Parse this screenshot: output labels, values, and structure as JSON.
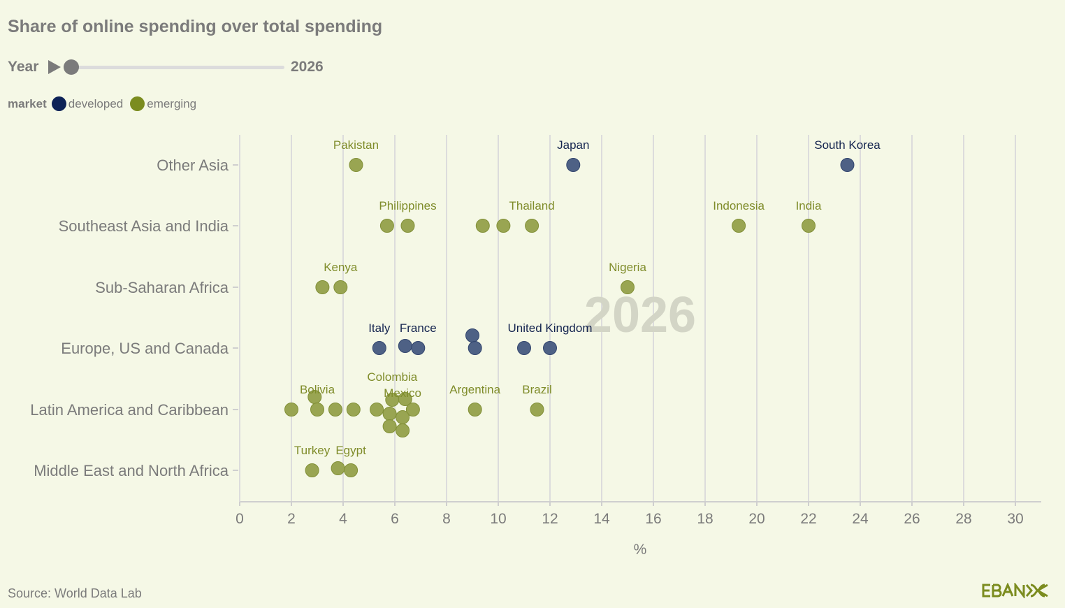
{
  "title": "Share of online spending over total spending",
  "slider": {
    "label": "Year",
    "value": "2026"
  },
  "legend": {
    "title": "market",
    "items": [
      {
        "label": "developed",
        "color": "#0d2257"
      },
      {
        "label": "emerging",
        "color": "#7b8c1f"
      }
    ]
  },
  "source": "Source: World Data Lab",
  "logo": "EBANX",
  "chart_data": {
    "type": "scatter",
    "watermark": "2026",
    "xlabel": "%",
    "xlim": [
      0,
      31
    ],
    "xticks": [
      "0",
      "2",
      "4",
      "6",
      "8",
      "10",
      "12",
      "14",
      "16",
      "18",
      "20",
      "22",
      "24",
      "26",
      "28",
      "30"
    ],
    "categories": [
      "Other Asia",
      "Southeast Asia and India",
      "Sub-Saharan Africa",
      "Europe, US and Canada",
      "Latin America and Caribbean",
      "Middle East and North Africa"
    ],
    "colors": {
      "developed": "#45587f",
      "emerging": "#93a04a",
      "developed_label": "#14244f",
      "emerging_label": "#7f8c2a"
    },
    "points": [
      {
        "cat": 0,
        "x": 4.5,
        "market": "emerging",
        "label": "Pakistan"
      },
      {
        "cat": 0,
        "x": 12.9,
        "market": "developed",
        "label": "Japan"
      },
      {
        "cat": 0,
        "x": 23.5,
        "market": "developed",
        "label": "South Korea"
      },
      {
        "cat": 1,
        "x": 5.7,
        "market": "emerging"
      },
      {
        "cat": 1,
        "x": 6.5,
        "market": "emerging",
        "label": "Philippines"
      },
      {
        "cat": 1,
        "x": 9.4,
        "market": "emerging"
      },
      {
        "cat": 1,
        "x": 10.2,
        "market": "emerging"
      },
      {
        "cat": 1,
        "x": 11.3,
        "market": "emerging",
        "label": "Thailand"
      },
      {
        "cat": 1,
        "x": 19.3,
        "market": "emerging",
        "label": "Indonesia"
      },
      {
        "cat": 1,
        "x": 22.0,
        "market": "emerging",
        "label": "India"
      },
      {
        "cat": 2,
        "x": 3.2,
        "market": "emerging"
      },
      {
        "cat": 2,
        "x": 3.9,
        "market": "emerging",
        "label": "Kenya"
      },
      {
        "cat": 2,
        "x": 15.0,
        "market": "emerging",
        "label": "Nigeria"
      },
      {
        "cat": 3,
        "x": 5.4,
        "market": "developed",
        "label": "Italy"
      },
      {
        "cat": 3,
        "x": 6.4,
        "market": "developed"
      },
      {
        "cat": 3,
        "x": 6.9,
        "market": "developed",
        "label": "France"
      },
      {
        "cat": 3,
        "x": 9.0,
        "market": "developed"
      },
      {
        "cat": 3,
        "x": 9.1,
        "market": "developed"
      },
      {
        "cat": 3,
        "x": 11.0,
        "market": "developed"
      },
      {
        "cat": 3,
        "x": 12.0,
        "market": "developed",
        "label": "United Kingdom"
      },
      {
        "cat": 4,
        "x": 2.0,
        "market": "emerging"
      },
      {
        "cat": 4,
        "x": 2.9,
        "market": "emerging"
      },
      {
        "cat": 4,
        "x": 3.0,
        "market": "emerging",
        "label": "Bolivia"
      },
      {
        "cat": 4,
        "x": 3.7,
        "market": "emerging"
      },
      {
        "cat": 4,
        "x": 4.4,
        "market": "emerging"
      },
      {
        "cat": 4,
        "x": 5.3,
        "market": "emerging"
      },
      {
        "cat": 4,
        "x": 5.9,
        "market": "emerging",
        "label": "Colombia"
      },
      {
        "cat": 4,
        "x": 6.4,
        "market": "emerging"
      },
      {
        "cat": 4,
        "x": 6.7,
        "market": "emerging"
      },
      {
        "cat": 4,
        "x": 5.8,
        "market": "emerging"
      },
      {
        "cat": 4,
        "x": 6.3,
        "market": "emerging",
        "label": "Mexico"
      },
      {
        "cat": 4,
        "x": 5.8,
        "market": "emerging"
      },
      {
        "cat": 4,
        "x": 6.3,
        "market": "emerging"
      },
      {
        "cat": 4,
        "x": 9.1,
        "market": "emerging",
        "label": "Argentina"
      },
      {
        "cat": 4,
        "x": 11.5,
        "market": "emerging",
        "label": "Brazil"
      },
      {
        "cat": 5,
        "x": 2.8,
        "market": "emerging",
        "label": "Turkey"
      },
      {
        "cat": 5,
        "x": 3.8,
        "market": "emerging"
      },
      {
        "cat": 5,
        "x": 4.3,
        "market": "emerging",
        "label": "Egypt"
      }
    ]
  }
}
